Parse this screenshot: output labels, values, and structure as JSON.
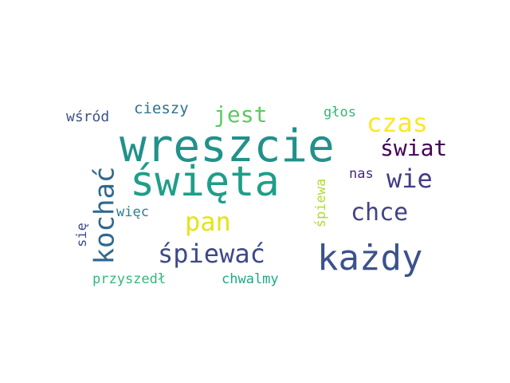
{
  "words": [
    {
      "text": "wreszcie",
      "color": "#21918c"
    },
    {
      "text": "święta",
      "color": "#1f9e89"
    },
    {
      "text": "każdy",
      "color": "#3b528b"
    },
    {
      "text": "kochać",
      "color": "#31688e"
    },
    {
      "text": "czas",
      "color": "#fde725"
    },
    {
      "text": "śpiewać",
      "color": "#3e4989"
    },
    {
      "text": "wie",
      "color": "#433e85"
    },
    {
      "text": "chce",
      "color": "#414487"
    },
    {
      "text": "pan",
      "color": "#e5e419"
    },
    {
      "text": "jest",
      "color": "#5ec962"
    },
    {
      "text": "świat",
      "color": "#440154"
    },
    {
      "text": "cieszy",
      "color": "#2c728e"
    },
    {
      "text": "wśród",
      "color": "#3b528b"
    },
    {
      "text": "głos",
      "color": "#35b779"
    },
    {
      "text": "nas",
      "color": "#482878"
    },
    {
      "text": "więc",
      "color": "#26828e"
    },
    {
      "text": "się",
      "color": "#3e4a89"
    },
    {
      "text": "śpiewa",
      "color": "#addc30"
    },
    {
      "text": "przyszedł",
      "color": "#35b779"
    },
    {
      "text": "chwalmy",
      "color": "#22a884"
    }
  ]
}
